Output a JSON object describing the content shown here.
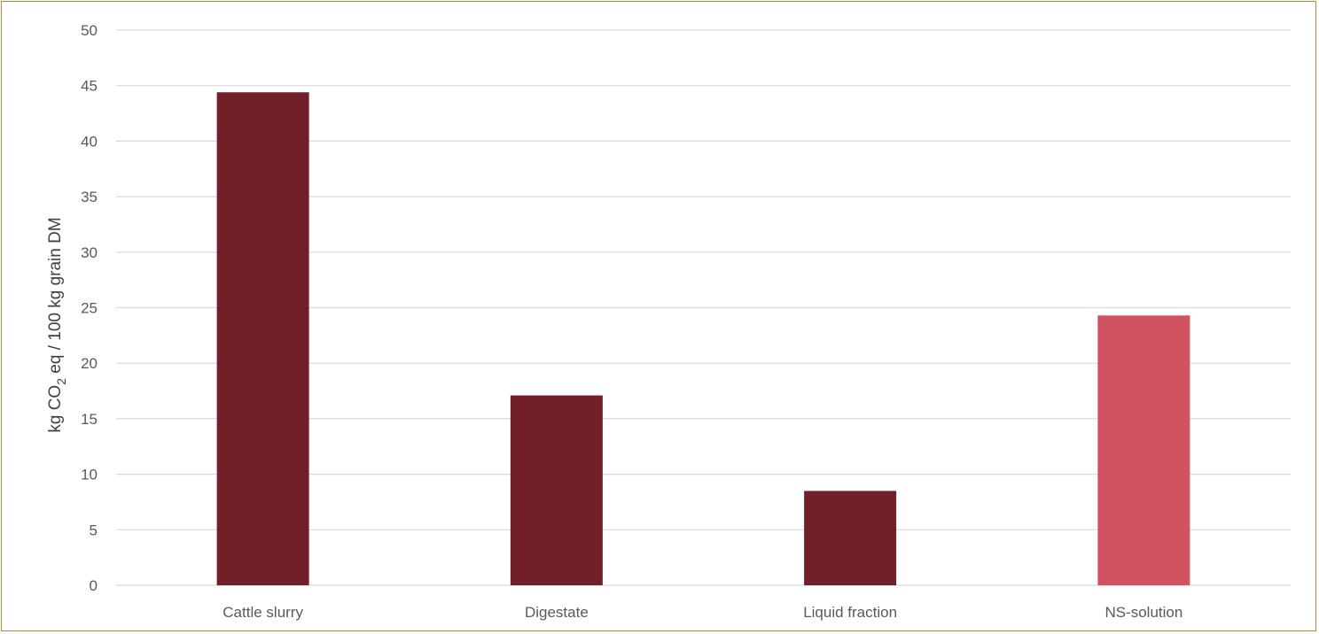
{
  "chart_data": {
    "type": "bar",
    "categories": [
      "Cattle slurry",
      "Digestate",
      "Liquid fraction",
      "NS-solution"
    ],
    "values": [
      44.4,
      17.1,
      8.5,
      24.3
    ],
    "bar_colors": [
      "#731f29",
      "#731f29",
      "#731f29",
      "#d15261"
    ],
    "ylabel_parts": {
      "before": "kg CO",
      "subscript": "2",
      "after": " eq / 100 kg grain DM"
    },
    "yticks": [
      "0",
      "5",
      "10",
      "15",
      "20",
      "25",
      "30",
      "35",
      "40",
      "45",
      "50"
    ],
    "ylim": [
      0,
      50
    ],
    "grid": true,
    "legend": "none"
  },
  "colors": {
    "border": "#b8863b",
    "gridline": "#d9d9d9",
    "tick_text": "#595959"
  }
}
